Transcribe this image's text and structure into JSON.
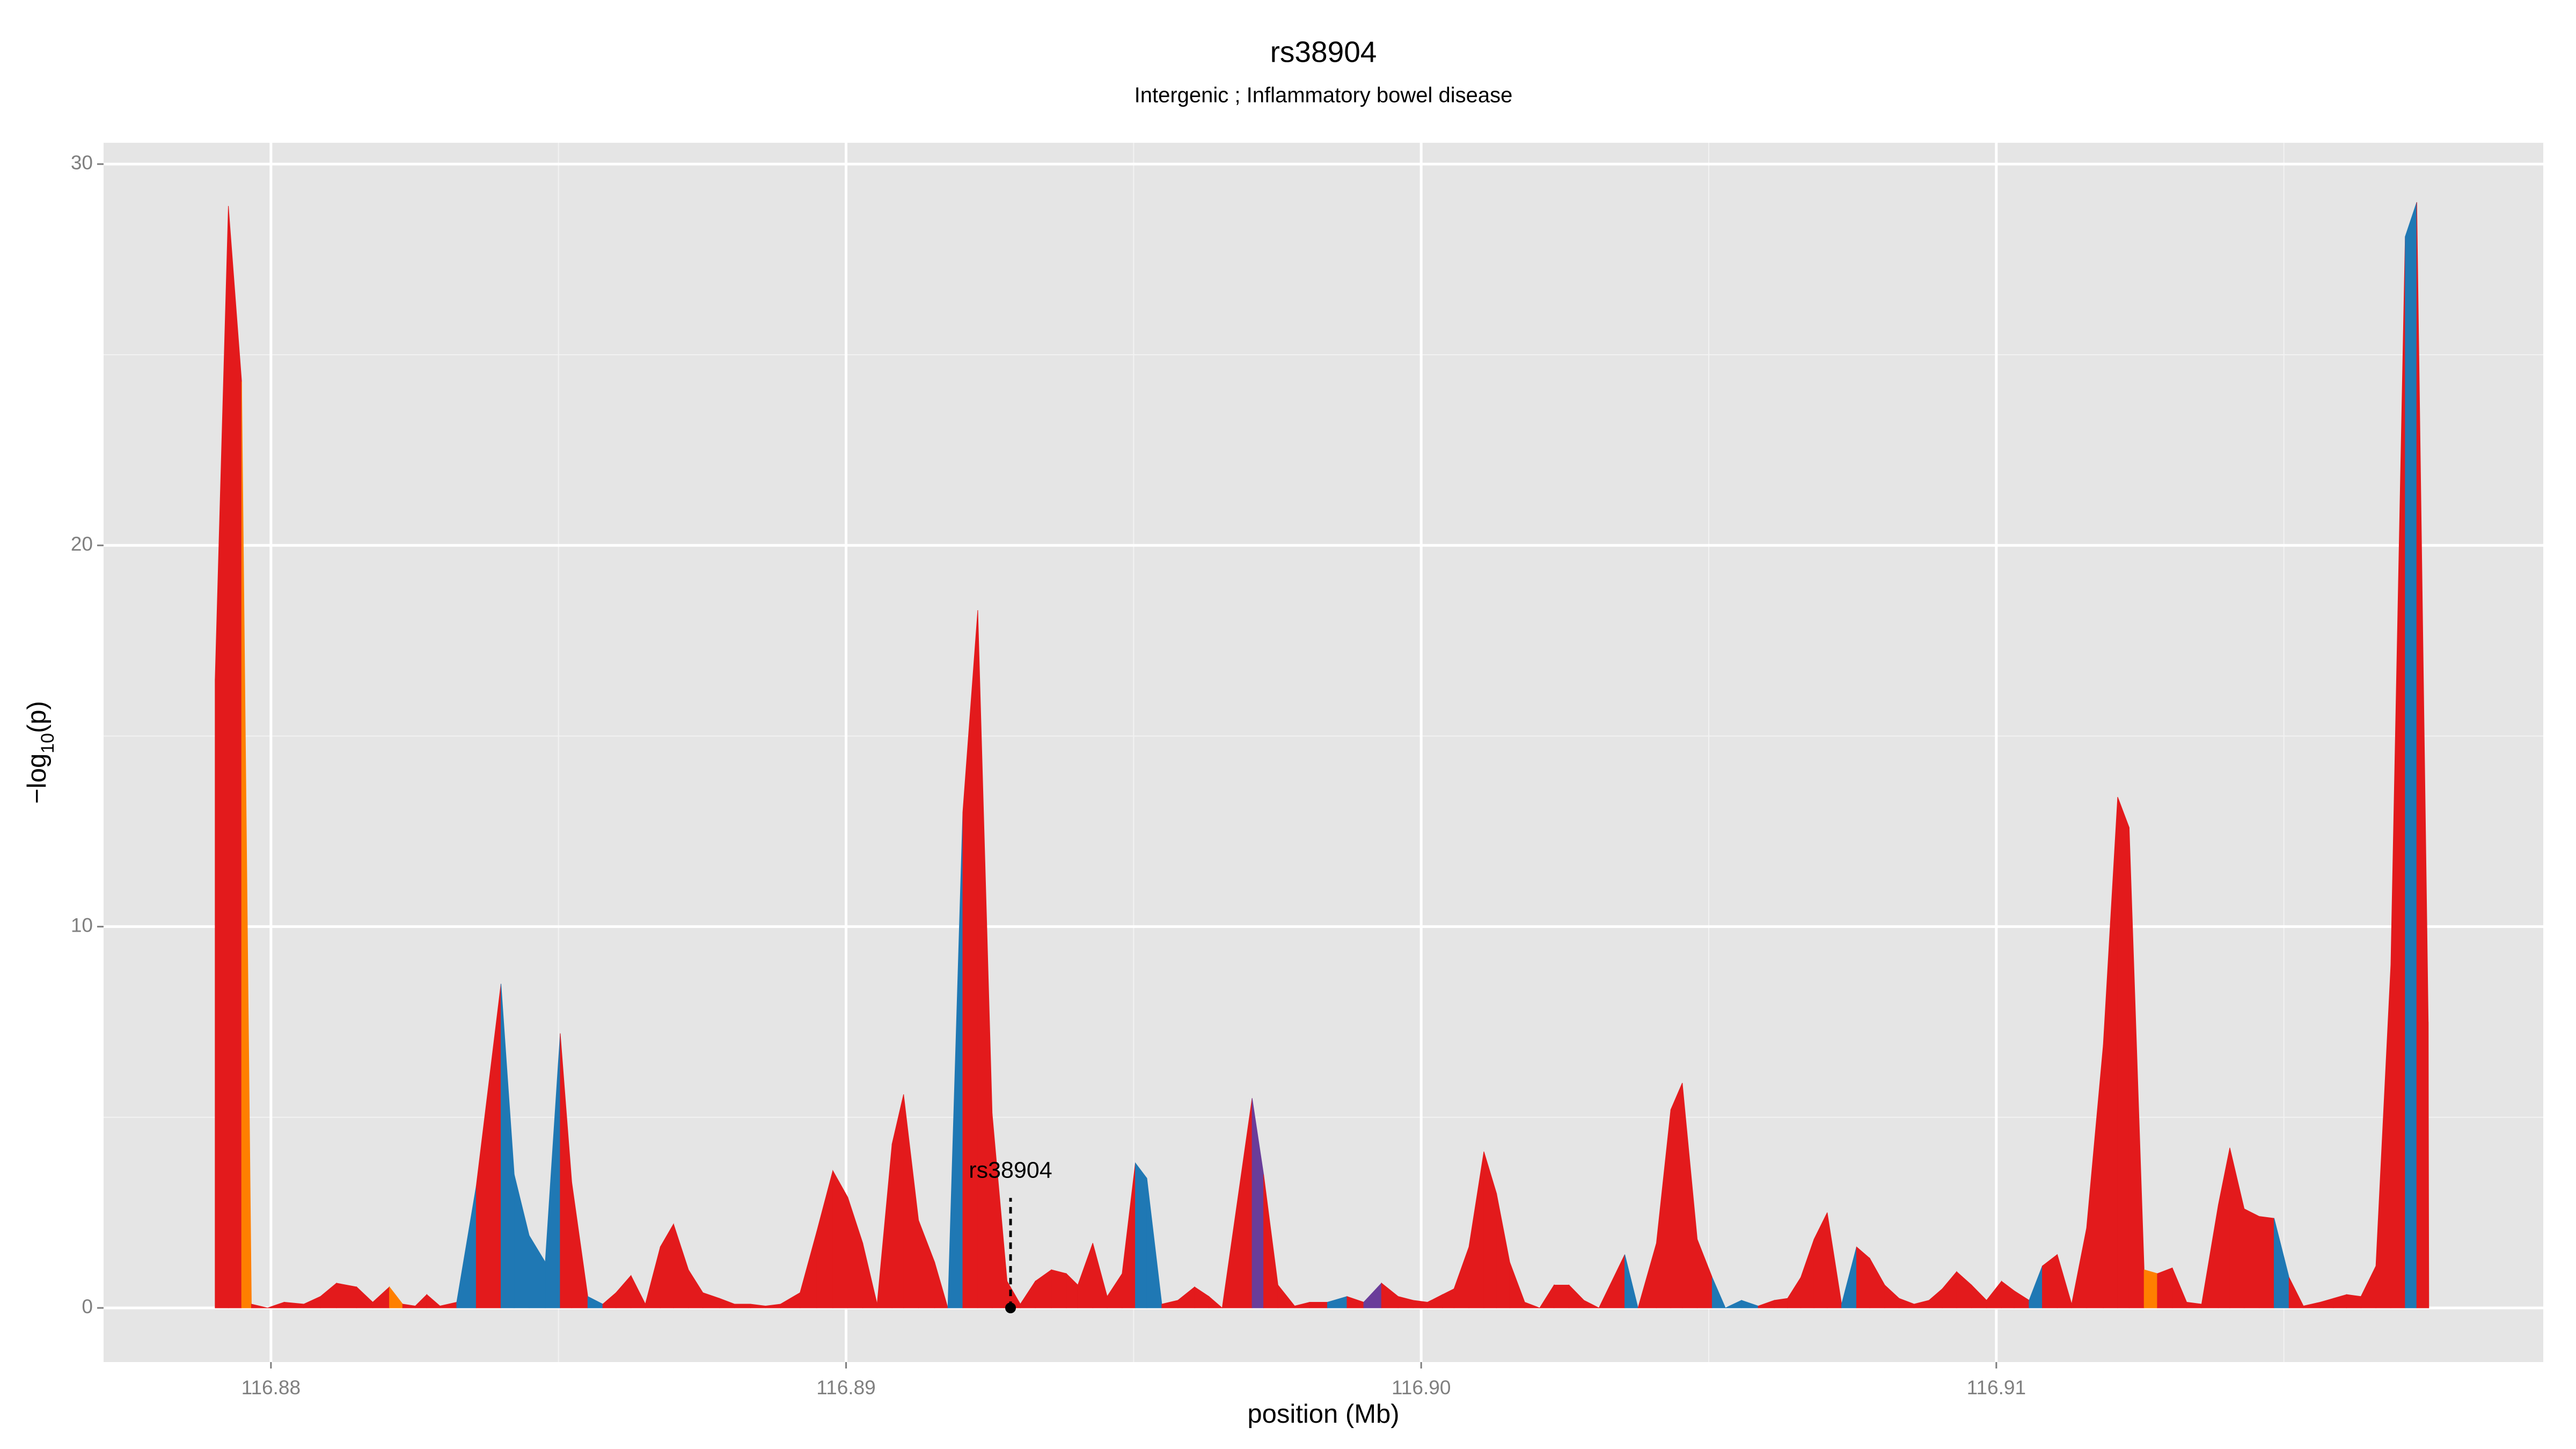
{
  "chart_data": {
    "type": "area",
    "title": "rs38904",
    "subtitle": "Intergenic ; Inflammatory bowel disease",
    "x_label": "position (Mb)",
    "y_label": {
      "prefix": "−log",
      "sub": "10",
      "suffix": "(p)"
    },
    "xlim": [
      116.87709,
      116.91951
    ],
    "ylim": [
      -1.42,
      30.56
    ],
    "xticks": [
      116.88,
      116.89,
      {
        "value": 116.9,
        "label": "116.90"
      },
      116.91
    ],
    "yticks": [
      0,
      10,
      20,
      30
    ],
    "xminorticks": [
      116.885,
      116.895,
      116.905,
      116.915
    ],
    "yminorticks": [
      5,
      15,
      25
    ],
    "grid": true,
    "x": [
      116.87903,
      116.87903,
      116.87926,
      116.87949,
      116.87966,
      116.87994,
      116.88023,
      116.88057,
      116.88086,
      116.88114,
      116.88149,
      116.88177,
      116.88206,
      116.88229,
      116.88251,
      116.88271,
      116.88294,
      116.88323,
      116.88357,
      116.884,
      116.88423,
      116.88449,
      116.88477,
      116.88503,
      116.88523,
      116.88551,
      116.88577,
      116.886,
      116.88626,
      116.88651,
      116.88677,
      116.887,
      116.88726,
      116.88751,
      116.8878,
      116.88806,
      116.88834,
      116.8886,
      116.88886,
      116.8892,
      116.88949,
      116.88977,
      116.89003,
      116.89029,
      116.89054,
      116.8908,
      116.891,
      116.89126,
      116.89154,
      116.89177,
      116.89203,
      116.89229,
      116.89254,
      116.8928,
      116.89303,
      116.89329,
      116.89357,
      116.89383,
      116.89403,
      116.89429,
      116.89454,
      116.8948,
      116.89503,
      116.89523,
      116.89549,
      116.89577,
      116.89606,
      116.89631,
      116.89654,
      116.89706,
      116.89726,
      116.89751,
      116.8978,
      116.89806,
      116.89837,
      116.89871,
      116.899,
      116.89931,
      116.8996,
      116.89986,
      116.90011,
      116.90037,
      116.90057,
      116.90083,
      116.90109,
      116.90131,
      116.90154,
      116.9018,
      116.90206,
      116.90231,
      116.90257,
      116.90283,
      116.90309,
      116.90354,
      116.90377,
      116.90409,
      116.90434,
      116.90454,
      116.9048,
      116.90506,
      116.90529,
      116.90557,
      116.90586,
      116.90614,
      116.90637,
      116.9066,
      116.90683,
      116.90706,
      116.90731,
      116.90757,
      116.9078,
      116.90806,
      116.90831,
      116.90857,
      116.90883,
      116.90906,
      116.90931,
      116.90957,
      116.90983,
      116.91009,
      116.91031,
      116.91057,
      116.9108,
      116.91106,
      116.91131,
      116.91157,
      116.91186,
      116.91211,
      116.91231,
      116.91257,
      116.9128,
      116.91306,
      116.91331,
      116.91357,
      116.91386,
      116.91406,
      116.91431,
      116.91457,
      116.91483,
      116.91509,
      116.91534,
      116.91563,
      116.91586,
      116.91609,
      116.91634,
      116.9166,
      116.91686,
      116.91711,
      116.91731,
      116.91751,
      116.91752
    ],
    "values": [
      0,
      16.5,
      28.9,
      24.3,
      0.1,
      0,
      0.15,
      0.1,
      0.3,
      0.65,
      0.55,
      0.15,
      0.55,
      0.1,
      0.05,
      0.35,
      0.05,
      0.15,
      3.2,
      8.5,
      3.5,
      1.9,
      1.2,
      7.2,
      3.3,
      0.3,
      0.1,
      0.4,
      0.85,
      0.1,
      1.6,
      2.2,
      1.0,
      0.4,
      0.25,
      0.1,
      0.1,
      0.05,
      0.1,
      0.4,
      2.0,
      3.6,
      2.9,
      1.7,
      0.1,
      4.3,
      5.6,
      2.3,
      1.2,
      0,
      13.0,
      18.3,
      5.1,
      0.7,
      0.1,
      0.7,
      1.0,
      0.9,
      0.6,
      1.7,
      0.3,
      0.9,
      3.8,
      3.4,
      0.1,
      0.2,
      0.55,
      0.3,
      0,
      5.5,
      3.5,
      0.6,
      0.05,
      0.15,
      0.15,
      0.3,
      0.15,
      0.65,
      0.3,
      0.2,
      0.15,
      0.35,
      0.5,
      1.6,
      4.1,
      3.0,
      1.2,
      0.15,
      0,
      0.6,
      0.6,
      0.2,
      0,
      1.4,
      0,
      1.7,
      5.2,
      5.9,
      1.8,
      0.8,
      0,
      0.2,
      0.05,
      0.2,
      0.25,
      0.8,
      1.8,
      2.5,
      0.1,
      1.6,
      1.3,
      0.6,
      0.25,
      0.1,
      0.2,
      0.5,
      0.95,
      0.6,
      0.2,
      0.7,
      0.45,
      0.2,
      1.1,
      1.4,
      0.1,
      2.1,
      6.9,
      13.4,
      12.6,
      1.0,
      0.9,
      1.05,
      0.15,
      0.1,
      2.7,
      4.2,
      2.6,
      2.4,
      2.35,
      0.8,
      0.05,
      0.15,
      0.25,
      0.35,
      0.3,
      1.1,
      9.0,
      28.1,
      29.0,
      7.5,
      0
    ],
    "segment_colors": [
      "#e31a1c",
      "#e31a1c",
      "#e31a1c",
      "#ff7f00",
      "#e31a1c",
      "#e31a1c",
      "#e31a1c",
      "#e31a1c",
      "#e31a1c",
      "#e31a1c",
      "#e31a1c",
      "#e31a1c",
      "#ff7f00",
      "#e31a1c",
      "#e31a1c",
      "#e31a1c",
      "#e31a1c",
      "#1f78b4",
      "#e31a1c",
      "#1f78b4",
      "#1f78b4",
      "#1f78b4",
      "#1f78b4",
      "#e31a1c",
      "#e31a1c",
      "#1f78b4",
      "#e31a1c",
      "#e31a1c",
      "#e31a1c",
      "#e31a1c",
      "#e31a1c",
      "#e31a1c",
      "#e31a1c",
      "#e31a1c",
      "#e31a1c",
      "#e31a1c",
      "#e31a1c",
      "#e31a1c",
      "#e31a1c",
      "#e31a1c",
      "#e31a1c",
      "#e31a1c",
      "#e31a1c",
      "#e31a1c",
      "#e31a1c",
      "#e31a1c",
      "#e31a1c",
      "#e31a1c",
      "#e31a1c",
      "#1f78b4",
      "#e31a1c",
      "#e31a1c",
      "#e31a1c",
      "#e31a1c",
      "#e31a1c",
      "#e31a1c",
      "#e31a1c",
      "#e31a1c",
      "#e31a1c",
      "#e31a1c",
      "#e31a1c",
      "#e31a1c",
      "#1f78b4",
      "#1f78b4",
      "#e31a1c",
      "#e31a1c",
      "#e31a1c",
      "#e31a1c",
      "#e31a1c",
      "#6a3d9a",
      "#e31a1c",
      "#e31a1c",
      "#e31a1c",
      "#e31a1c",
      "#1f78b4",
      "#e31a1c",
      "#6a3d9a",
      "#e31a1c",
      "#e31a1c",
      "#e31a1c",
      "#e31a1c",
      "#e31a1c",
      "#e31a1c",
      "#e31a1c",
      "#e31a1c",
      "#e31a1c",
      "#e31a1c",
      "#e31a1c",
      "#e31a1c",
      "#e31a1c",
      "#e31a1c",
      "#e31a1c",
      "#e31a1c",
      "#1f78b4",
      "#e31a1c",
      "#e31a1c",
      "#e31a1c",
      "#e31a1c",
      "#e31a1c",
      "#1f78b4",
      "#1f78b4",
      "#1f78b4",
      "#e31a1c",
      "#e31a1c",
      "#e31a1c",
      "#e31a1c",
      "#e31a1c",
      "#e31a1c",
      "#1f78b4",
      "#e31a1c",
      "#e31a1c",
      "#e31a1c",
      "#e31a1c",
      "#e31a1c",
      "#e31a1c",
      "#e31a1c",
      "#e31a1c",
      "#e31a1c",
      "#e31a1c",
      "#e31a1c",
      "#e31a1c",
      "#1f78b4",
      "#e31a1c",
      "#e31a1c",
      "#e31a1c",
      "#e31a1c",
      "#e31a1c",
      "#e31a1c",
      "#e31a1c",
      "#ff7f00",
      "#e31a1c",
      "#e31a1c",
      "#e31a1c",
      "#e31a1c",
      "#e31a1c",
      "#e31a1c",
      "#e31a1c",
      "#e31a1c",
      "#1f78b4",
      "#e31a1c",
      "#e31a1c",
      "#e31a1c",
      "#e31a1c",
      "#e31a1c",
      "#e31a1c",
      "#e31a1c",
      "#e31a1c",
      "#1f78b4",
      "#e31a1c",
      "#e31a1c",
      "#e31a1c"
    ],
    "annotation": {
      "label": "rs38904",
      "x": 116.89286,
      "y": 0
    }
  }
}
